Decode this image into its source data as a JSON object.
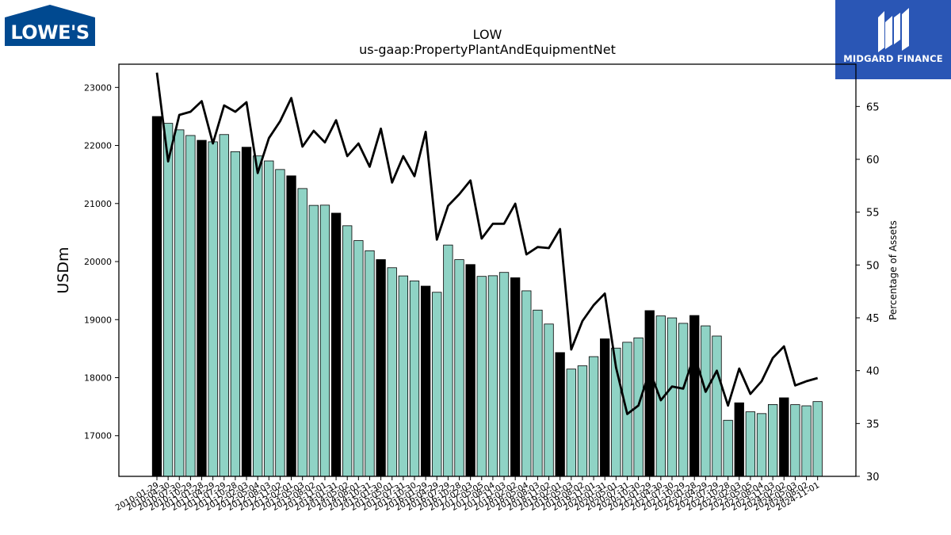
{
  "brand": {
    "lowes_logo_text": "LOWE'S",
    "midgard_logo_text": "MIDGARD FINANCE"
  },
  "chart_data": {
    "type": "bar",
    "title": "LOW",
    "subtitle": "us-gaap:PropertyPlantAndEquipmentNet",
    "ylabel": "USDm",
    "y2label": "Percentage of Assets",
    "ylim": [
      16300,
      23400
    ],
    "y2lim": [
      30,
      69
    ],
    "yticks": [
      17000,
      18000,
      19000,
      20000,
      21000,
      22000,
      23000
    ],
    "y2ticks": [
      30,
      35,
      40,
      45,
      50,
      55,
      60,
      65
    ],
    "grid": false,
    "colors": {
      "bar_annual": "#000000",
      "bar_quarter": "#8fd3c5",
      "line": "#000000"
    },
    "xtick_labels": [
      "2010-01-29",
      "2010-04-30",
      "2010-07-30",
      "2010-10-29",
      "2011-01-28",
      "2011-04-29",
      "2011-07-29",
      "2011-10-28",
      "2012-02-03",
      "2012-05-04",
      "2012-08-03",
      "2012-11-02",
      "2013-02-01",
      "2013-05-03",
      "2013-08-02",
      "2013-11-01",
      "2014-01-31",
      "2014-05-02",
      "2014-08-01",
      "2014-10-31",
      "2015-01-30",
      "2015-05-01",
      "2015-07-31",
      "2015-10-30",
      "2016-01-29",
      "2016-04-29",
      "2016-07-29",
      "2016-10-28",
      "2017-02-03",
      "2017-05-05",
      "2017-08-04",
      "2017-11-03",
      "2018-02-02",
      "2018-05-04",
      "2018-08-03",
      "2018-11-02",
      "2019-02-01",
      "2019-05-03",
      "2019-08-02",
      "2019-11-01",
      "2020-01-31",
      "2020-05-01",
      "2020-07-31",
      "2020-10-30",
      "2021-01-29",
      "2021-04-30",
      "2021-07-30",
      "2021-10-29",
      "2022-01-28",
      "2022-04-29",
      "2022-07-29",
      "2022-10-28",
      "2023-02-03",
      "2023-05-05",
      "2023-08-04",
      "2023-11-03",
      "2024-02-02",
      "2024-05-03",
      "2024-08-02",
      "2024-11-01"
    ],
    "series": [
      {
        "values": [
          22499,
          22381,
          22269,
          22172,
          22089,
          22063,
          22188,
          21893,
          21970,
          21820,
          21734,
          21586,
          21477,
          21258,
          20968,
          20972,
          20834,
          20617,
          20361,
          20186,
          20034,
          19894,
          19753,
          19666,
          19577,
          19471,
          20285,
          20033,
          19949,
          19745,
          19756,
          19813,
          19721,
          19496,
          19164,
          18924,
          18432,
          18148,
          18204,
          18362,
          18669,
          18509,
          18610,
          18686,
          19155,
          19063,
          19030,
          18936,
          19071,
          18893,
          18717,
          17266,
          17567,
          17412,
          17381,
          17537,
          17653,
          17535,
          17515,
          17588
        ],
        "annual": [
          true,
          false,
          false,
          false,
          true,
          false,
          false,
          false,
          true,
          false,
          false,
          false,
          true,
          false,
          false,
          false,
          true,
          false,
          false,
          false,
          true,
          false,
          false,
          false,
          true,
          false,
          false,
          false,
          true,
          false,
          false,
          false,
          true,
          false,
          false,
          false,
          true,
          false,
          false,
          false,
          true,
          false,
          false,
          false,
          true,
          false,
          false,
          false,
          true,
          false,
          false,
          false,
          true,
          false,
          false,
          false,
          true,
          false,
          false,
          false
        ]
      },
      {
        "axis": "right",
        "values": [
          68.2,
          59.8,
          64.2,
          64.5,
          65.5,
          61.5,
          65.1,
          64.5,
          65.4,
          58.7,
          62.0,
          63.6,
          65.8,
          61.2,
          62.7,
          61.6,
          63.7,
          60.3,
          61.5,
          59.3,
          62.9,
          57.8,
          60.3,
          58.4,
          62.6,
          52.4,
          55.6,
          56.7,
          58.0,
          52.5,
          53.9,
          53.9,
          55.8,
          51.0,
          51.7,
          51.6,
          53.4,
          42.0,
          44.7,
          46.2,
          47.3,
          40.3,
          35.9,
          36.7,
          40.0,
          37.2,
          38.5,
          38.3,
          41.5,
          38.0,
          40.0,
          36.7,
          40.2,
          37.8,
          39.0,
          41.2,
          42.3,
          38.6,
          39.0,
          39.3
        ]
      }
    ]
  }
}
